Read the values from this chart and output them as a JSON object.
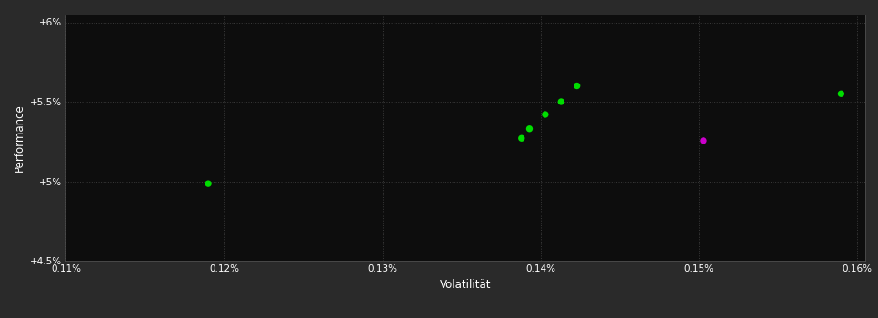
{
  "background_color": "#2a2a2a",
  "plot_bg_color": "#0d0d0d",
  "grid_color": "#3a3a3a",
  "text_color": "#ffffff",
  "xlabel": "Volatilität",
  "ylabel": "Performance",
  "xlim": [
    0.0011,
    0.001605
  ],
  "ylim": [
    0.045,
    0.0605
  ],
  "xtick_vals": [
    0.0011,
    0.0012,
    0.0013,
    0.0014,
    0.0015,
    0.0016
  ],
  "ytick_vals": [
    0.045,
    0.05,
    0.055,
    0.06
  ],
  "ytick_labels": [
    "+4.5%",
    "+5%",
    "+5.5%",
    "+6%"
  ],
  "xtick_labels": [
    "0.11%",
    "0.12%",
    "0.13%",
    "0.14%",
    "0.15%",
    "0.16%"
  ],
  "green_x": [
    0.00119,
    0.001388,
    0.001393,
    0.001403,
    0.001413,
    0.001423,
    0.00159
  ],
  "green_y": [
    0.04985,
    0.0527,
    0.0533,
    0.0542,
    0.055,
    0.056,
    0.0555
  ],
  "magenta_x": [
    0.001503
  ],
  "magenta_y": [
    0.05255
  ],
  "marker_size": 28,
  "green_color": "#00dd00",
  "magenta_color": "#cc00cc",
  "fontsize_ticks": 7.5,
  "fontsize_label": 8.5
}
